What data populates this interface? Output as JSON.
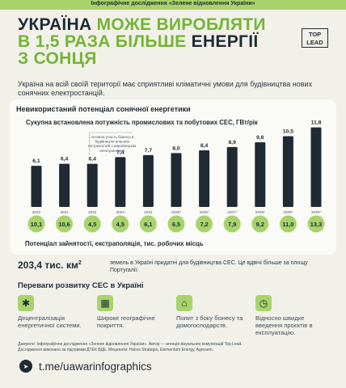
{
  "header": {
    "title": "Інфографічне дослідження «Зелене відновлення України»"
  },
  "headline": {
    "line1_dark": "УКРАЇНА",
    "line1_green": "МОЖЕ ВИРОБЛЯТИ",
    "line2_green": "В 1,5 РАЗА БІЛЬШЕ",
    "line2_dark": "ЕНЕРГІЇ",
    "line3_green": "З СОНЦЯ"
  },
  "logo": {
    "line1": "TOP",
    "line2": "LEAD"
  },
  "intro": "Україна на всій своїй території має сприятливі кліматичні умови для будівництва нових сонячних електростанцій.",
  "card_title": "Невикористаний потенціал сонячної енергетики",
  "chart_data": {
    "type": "bar",
    "title": "Сукупна встановлена потужність промислових та побутових СЕС, ГВт/рік",
    "categories": [
      "2020",
      "2021",
      "2022",
      "2023",
      "2024",
      "2025*",
      "2026*",
      "2027*",
      "2028*",
      "2029*",
      "2030*"
    ],
    "values": [
      6.1,
      6.4,
      6.4,
      7.4,
      7.7,
      8.0,
      8.4,
      8.9,
      9.6,
      10.5,
      11.8
    ],
    "value_labels": [
      "6,1",
      "6,4",
      "6,4",
      "7,4",
      "7,7",
      "8,0",
      "8,4",
      "8,9",
      "9,6",
      "10,5",
      "11,8"
    ],
    "annotation": "Активна участь бізнесу в будівництві власних потужностей з виробництва електроенергії",
    "annotation_category": "2023",
    "jobs_title": "Потенціал зайнятості, екстраполяція, тис. робочих місць",
    "jobs_values": [
      10.1,
      10.6,
      4.5,
      4.5,
      6.1,
      6.5,
      7.2,
      7.9,
      9.2,
      11.0,
      13.3
    ],
    "jobs_labels": [
      "10,1",
      "10,6",
      "4,5",
      "4,5",
      "6,1",
      "6,5",
      "7,2",
      "7,9",
      "9,2",
      "11,0",
      "13,3"
    ],
    "colors": {
      "bar": "#1f2a33",
      "circle": "#a8d36b"
    }
  },
  "area": {
    "value": "203,4 тис. км",
    "sup": "2",
    "desc": "земель в Україні придатні для будівництва СЕС. Це вдвічі більше за площу Португалії."
  },
  "advantages": {
    "title": "Переваги розвитку СЕС в Україні",
    "items": [
      {
        "icon": "decentralization-icon",
        "glyph": "✱",
        "text": "Децентралізація енергетичної системи."
      },
      {
        "icon": "geography-icon",
        "glyph": "▦",
        "text": "Широке географічне покриття."
      },
      {
        "icon": "demand-icon",
        "glyph": "⌂",
        "text": "Попит з боку бізнесу та домогосподарств."
      },
      {
        "icon": "speed-icon",
        "glyph": "◷",
        "text": "Відносно швидке введення проєктів в експлуатацію."
      }
    ]
  },
  "source": {
    "line1": "Джерело: Інфографічне дослідження «Зелене відновлення України». Автор — агенція візуальних комунікацій Top Lead.",
    "line2": "Дослідження виконано за підтримки ДТЕК ВДЕ. Меценати: Helios Strategia, Elementum Energy, Agrosem."
  },
  "telegram": {
    "icon": "telegram-icon",
    "glyph": "➤",
    "text": "t.me/uawarinfographics"
  }
}
